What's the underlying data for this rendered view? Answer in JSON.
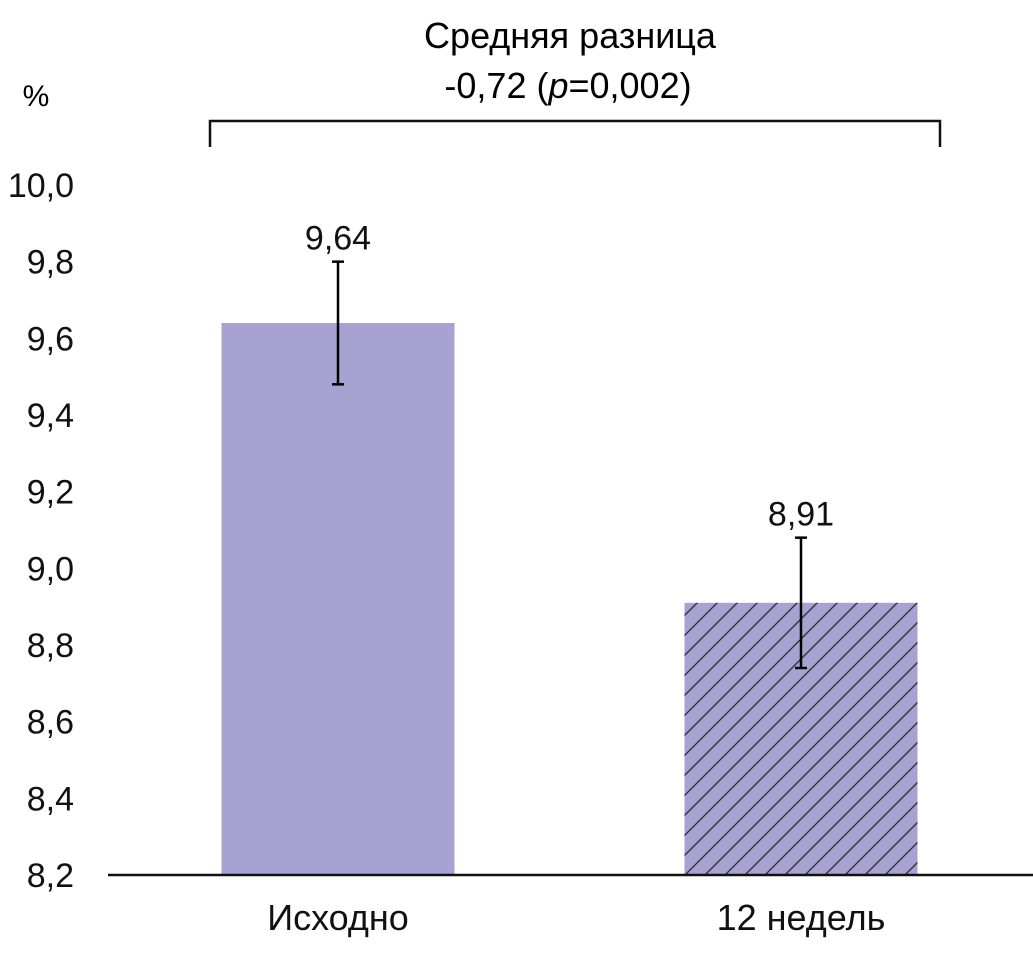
{
  "chart_data": {
    "type": "bar",
    "title_line1": "Средняя разница",
    "title_line2_prefix": "-0,72 (",
    "title_line2_p": "p",
    "title_line2_suffix": "=0,002)",
    "unit_label": "%",
    "categories": [
      "Исходно",
      "12 недель"
    ],
    "values": [
      9.64,
      8.91
    ],
    "value_labels": [
      "9,64",
      "8,91"
    ],
    "error_bars": [
      {
        "low": 9.48,
        "high": 9.8
      },
      {
        "low": 8.74,
        "high": 9.08
      }
    ],
    "y_ticks": [
      "10,0",
      "9,8",
      "9,6",
      "9,4",
      "9,2",
      "9,0",
      "8,8",
      "8,6",
      "8,4",
      "8,2"
    ],
    "y_tick_values": [
      10.0,
      9.8,
      9.6,
      9.4,
      9.2,
      9.0,
      8.8,
      8.6,
      8.4,
      8.2
    ],
    "ylim": [
      8.2,
      10.0
    ],
    "bar_fill": "#a7a2d2",
    "hatched": [
      false,
      true
    ],
    "hatch_color": "#333333",
    "axis_color": "#111111"
  }
}
